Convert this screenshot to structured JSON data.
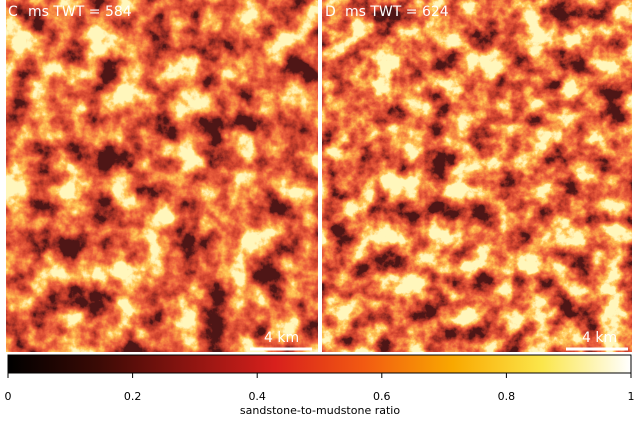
{
  "panels": [
    {
      "letter": "C",
      "label": "ms TWT = 584",
      "scale_bar": "4 km"
    },
    {
      "letter": "D",
      "label": "ms TWT = 624",
      "scale_bar": "4 km"
    }
  ],
  "colorbar": {
    "label": "sandstone-to-mudstone ratio",
    "lim": [
      0,
      1
    ],
    "ticks": [
      0,
      0.2,
      0.4,
      0.6,
      0.8,
      1
    ],
    "colors": [
      "#000000",
      "#3a0a05",
      "#8a1410",
      "#d8201c",
      "#f25a12",
      "#f9a800",
      "#fbe64a",
      "#ffffff"
    ]
  }
}
